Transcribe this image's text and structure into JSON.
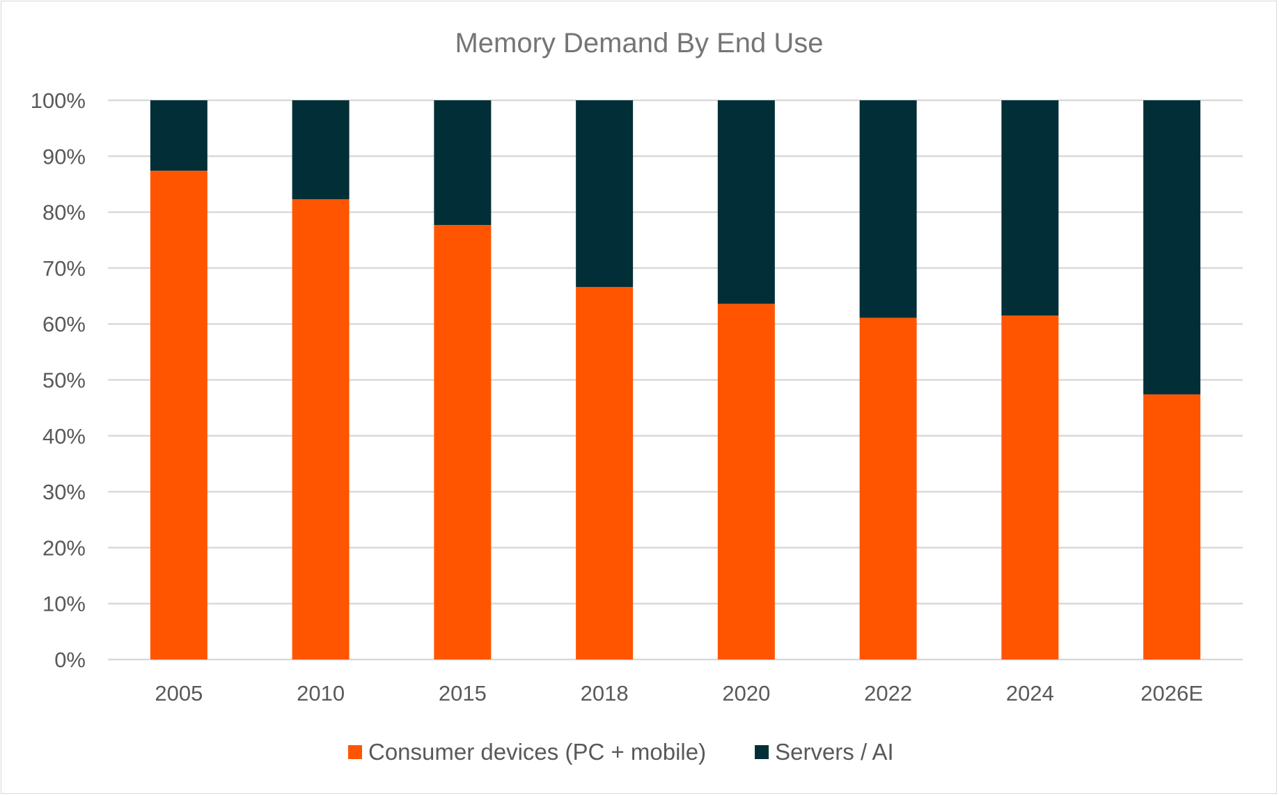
{
  "chart_data": {
    "type": "bar",
    "stacked": true,
    "title": "Memory Demand By End Use",
    "xlabel": "",
    "ylabel": "",
    "categories": [
      "2005",
      "2010",
      "2015",
      "2018",
      "2020",
      "2022",
      "2024",
      "2026E"
    ],
    "series": [
      {
        "name": "Consumer devices (PC + mobile)",
        "color": "#FF5500",
        "values": [
          87.4,
          82.3,
          77.7,
          66.6,
          63.6,
          61.1,
          61.5,
          47.4
        ]
      },
      {
        "name": "Servers / AI",
        "color": "#022F37",
        "values": [
          12.6,
          17.7,
          22.3,
          33.4,
          36.4,
          38.9,
          38.5,
          52.6
        ]
      }
    ],
    "ylim": [
      0,
      100
    ],
    "yticks": [
      "0%",
      "10%",
      "20%",
      "30%",
      "40%",
      "50%",
      "60%",
      "70%",
      "80%",
      "90%",
      "100%"
    ],
    "grid": true,
    "legend": "bottom",
    "gridline_color": "#D9D9D9"
  }
}
